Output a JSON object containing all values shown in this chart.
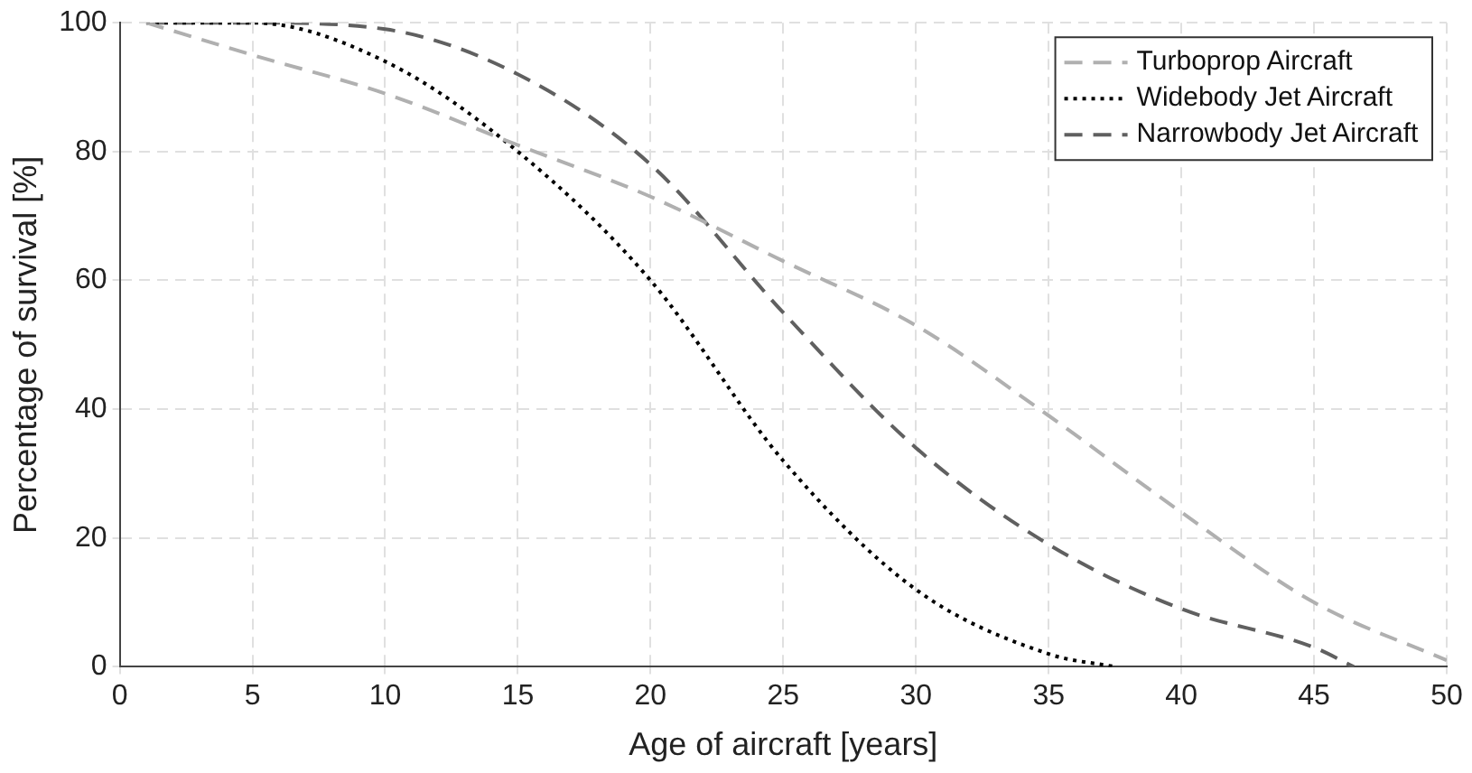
{
  "chart_data": {
    "type": "line",
    "xlabel": "Age of aircraft [years]",
    "ylabel": "Percentage of survival [%]",
    "xlim": [
      0,
      50
    ],
    "xticks": [
      0,
      5,
      10,
      15,
      20,
      25,
      30,
      35,
      40,
      45,
      50
    ],
    "ylim": [
      0,
      100
    ],
    "yticks": [
      0,
      20,
      40,
      60,
      80,
      100
    ],
    "grid": true,
    "legend": "top right",
    "marker": "none",
    "series": [
      {
        "name": "Turboprop Aircraft",
        "color": "#b0b0b0",
        "line_style": "dashed",
        "x": [
          1,
          5,
          10,
          15,
          20,
          25,
          30,
          35,
          40,
          45,
          50
        ],
        "values": [
          100,
          95,
          89,
          81,
          73,
          63,
          53,
          39,
          24,
          10,
          1
        ]
      },
      {
        "name": "Widebody Jet Aircraft",
        "color": "#000000",
        "line_style": "dotted",
        "x": [
          1,
          5,
          10,
          15,
          20,
          25,
          30,
          35,
          37.5
        ],
        "values": [
          100,
          100,
          94,
          80,
          60,
          32,
          12,
          2,
          0
        ]
      },
      {
        "name": "Narrowbody Jet Aircraft",
        "color": "#606060",
        "line_style": "dashed",
        "x": [
          1,
          5,
          10,
          15,
          20,
          25,
          30,
          35,
          40,
          45,
          46.5
        ],
        "values": [
          100,
          100,
          99,
          92,
          78,
          55,
          34,
          19,
          9,
          3,
          0
        ]
      }
    ]
  }
}
